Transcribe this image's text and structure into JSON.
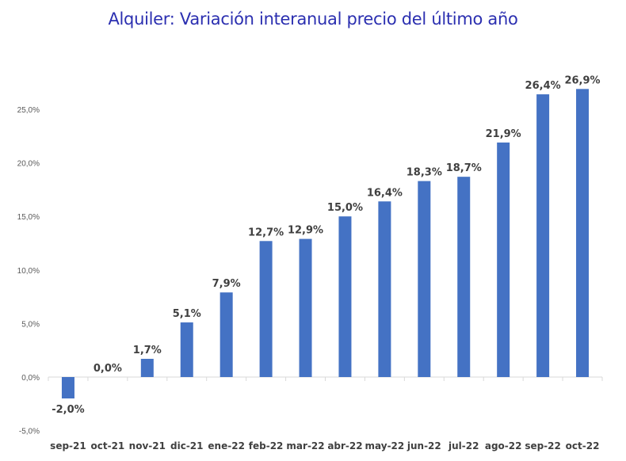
{
  "chart_data": {
    "type": "bar",
    "title": "Alquiler: Variación interanual precio del último año",
    "categories": [
      "sep-21",
      "oct-21",
      "nov-21",
      "dic-21",
      "ene-22",
      "feb-22",
      "mar-22",
      "abr-22",
      "may-22",
      "jun-22",
      "jul-22",
      "ago-22",
      "sep-22",
      "oct-22"
    ],
    "values": [
      -2.0,
      0.0,
      1.7,
      5.1,
      7.9,
      12.7,
      12.9,
      15.0,
      16.4,
      18.3,
      18.7,
      21.9,
      26.4,
      26.9
    ],
    "data_labels": [
      "-2,0%",
      "0,0%",
      "1,7%",
      "5,1%",
      "7,9%",
      "12,7%",
      "12,9%",
      "15,0%",
      "16,4%",
      "18,3%",
      "18,7%",
      "21,9%",
      "26,4%",
      "26,9%"
    ],
    "yticks": [
      -5,
      0,
      5,
      10,
      15,
      20,
      25
    ],
    "ytick_labels": [
      "-5,0%",
      "0,0%",
      "5,0%",
      "10,0%",
      "15,0%",
      "20,0%",
      "25,0%"
    ],
    "ylim": [
      -5,
      28
    ],
    "grid": false,
    "legend": "none",
    "bar_color": "#4472c4",
    "title_color": "#2b2fb0"
  }
}
